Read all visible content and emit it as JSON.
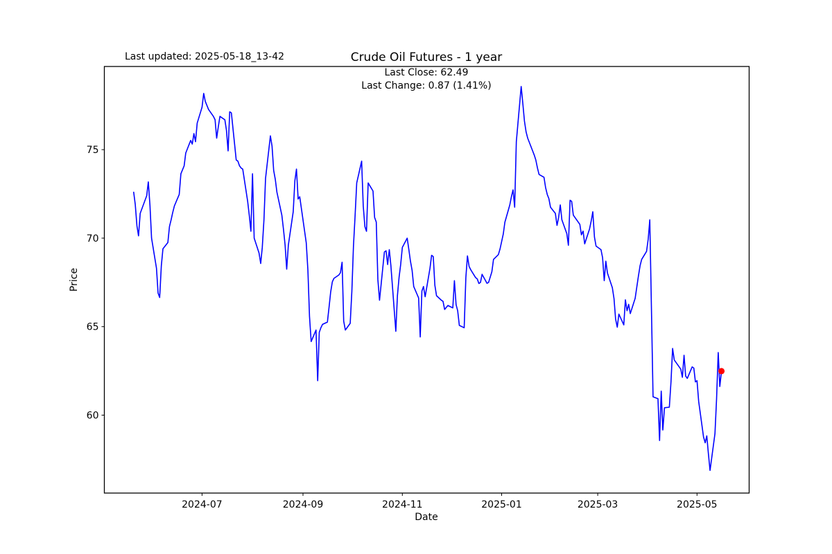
{
  "figure": {
    "last_updated": "Last updated: 2025-05-18_13-42"
  },
  "chart_data": {
    "type": "line",
    "title": "Crude Oil Futures - 1 year",
    "xlabel": "Date",
    "ylabel": "Price",
    "annotation": {
      "line1": "Last Close: 62.49",
      "line2": "Last Change: 0.87 (1.41%)"
    },
    "last_close": 62.49,
    "last_change": 0.87,
    "last_change_pct": 1.41,
    "line_color": "#0000ff",
    "marker_color": "#ff0000",
    "grid": false,
    "legend": "none",
    "x_ticks": [
      "2024-07",
      "2024-09",
      "2024-11",
      "2025-01",
      "2025-03",
      "2025-05"
    ],
    "y_ticks": [
      60,
      65,
      70,
      75
    ],
    "xlim": [
      "2024-05-02",
      "2025-06-02"
    ],
    "ylim": [
      55.6,
      79.7
    ],
    "series": [
      {
        "name": "Close",
        "points": [
          [
            "2024-05-20",
            72.6
          ],
          [
            "2024-05-21",
            71.9
          ],
          [
            "2024-05-22",
            70.7
          ],
          [
            "2024-05-23",
            70.13
          ],
          [
            "2024-05-24",
            71.4
          ],
          [
            "2024-05-28",
            72.4
          ],
          [
            "2024-05-29",
            73.18
          ],
          [
            "2024-05-30",
            71.85
          ],
          [
            "2024-05-31",
            70.0
          ],
          [
            "2024-06-03",
            68.3
          ],
          [
            "2024-06-04",
            66.9
          ],
          [
            "2024-06-05",
            66.65
          ],
          [
            "2024-06-06",
            68.45
          ],
          [
            "2024-06-07",
            69.4
          ],
          [
            "2024-06-10",
            69.75
          ],
          [
            "2024-06-11",
            70.65
          ],
          [
            "2024-06-12",
            71.04
          ],
          [
            "2024-06-13",
            71.45
          ],
          [
            "2024-06-14",
            71.82
          ],
          [
            "2024-06-17",
            72.47
          ],
          [
            "2024-06-18",
            73.64
          ],
          [
            "2024-06-20",
            74.09
          ],
          [
            "2024-06-21",
            74.81
          ],
          [
            "2024-06-24",
            75.52
          ],
          [
            "2024-06-25",
            75.32
          ],
          [
            "2024-06-26",
            75.91
          ],
          [
            "2024-06-27",
            75.45
          ],
          [
            "2024-06-28",
            76.5
          ],
          [
            "2024-07-01",
            77.4
          ],
          [
            "2024-07-02",
            78.18
          ],
          [
            "2024-07-03",
            77.73
          ],
          [
            "2024-07-05",
            77.27
          ],
          [
            "2024-07-08",
            76.88
          ],
          [
            "2024-07-09",
            76.69
          ],
          [
            "2024-07-10",
            75.65
          ],
          [
            "2024-07-11",
            76.3
          ],
          [
            "2024-07-12",
            76.88
          ],
          [
            "2024-07-15",
            76.69
          ],
          [
            "2024-07-16",
            76.1
          ],
          [
            "2024-07-17",
            74.93
          ],
          [
            "2024-07-18",
            77.14
          ],
          [
            "2024-07-19",
            77.08
          ],
          [
            "2024-07-22",
            74.42
          ],
          [
            "2024-07-23",
            74.35
          ],
          [
            "2024-07-24",
            74.09
          ],
          [
            "2024-07-25",
            73.96
          ],
          [
            "2024-07-26",
            73.9
          ],
          [
            "2024-07-29",
            72.08
          ],
          [
            "2024-07-30",
            71.3
          ],
          [
            "2024-07-31",
            70.39
          ],
          [
            "2024-08-01",
            73.64
          ],
          [
            "2024-08-02",
            70.0
          ],
          [
            "2024-08-05",
            69.16
          ],
          [
            "2024-08-06",
            68.57
          ],
          [
            "2024-08-07",
            69.48
          ],
          [
            "2024-08-08",
            71.04
          ],
          [
            "2024-08-09",
            73.38
          ],
          [
            "2024-08-12",
            75.78
          ],
          [
            "2024-08-13",
            75.19
          ],
          [
            "2024-08-14",
            73.83
          ],
          [
            "2024-08-15",
            73.31
          ],
          [
            "2024-08-16",
            72.6
          ],
          [
            "2024-08-19",
            71.3
          ],
          [
            "2024-08-20",
            70.52
          ],
          [
            "2024-08-21",
            69.61
          ],
          [
            "2024-08-22",
            68.25
          ],
          [
            "2024-08-23",
            69.61
          ],
          [
            "2024-08-26",
            71.49
          ],
          [
            "2024-08-27",
            73.25
          ],
          [
            "2024-08-28",
            73.9
          ],
          [
            "2024-08-29",
            72.21
          ],
          [
            "2024-08-30",
            72.34
          ],
          [
            "2024-09-03",
            69.74
          ],
          [
            "2024-09-04",
            68.18
          ],
          [
            "2024-09-05",
            65.58
          ],
          [
            "2024-09-06",
            64.16
          ],
          [
            "2024-09-09",
            64.81
          ],
          [
            "2024-09-10",
            61.95
          ],
          [
            "2024-09-11",
            64.68
          ],
          [
            "2024-09-12",
            64.94
          ],
          [
            "2024-09-13",
            65.13
          ],
          [
            "2024-09-16",
            65.26
          ],
          [
            "2024-09-17",
            66.1
          ],
          [
            "2024-09-18",
            66.95
          ],
          [
            "2024-09-19",
            67.53
          ],
          [
            "2024-09-20",
            67.73
          ],
          [
            "2024-09-23",
            67.92
          ],
          [
            "2024-09-24",
            68.05
          ],
          [
            "2024-09-25",
            68.64
          ],
          [
            "2024-09-26",
            65.32
          ],
          [
            "2024-09-27",
            64.81
          ],
          [
            "2024-09-30",
            65.19
          ],
          [
            "2024-10-01",
            67.01
          ],
          [
            "2024-10-02",
            69.55
          ],
          [
            "2024-10-03",
            71.3
          ],
          [
            "2024-10-04",
            73.12
          ],
          [
            "2024-10-07",
            74.35
          ],
          [
            "2024-10-08",
            71.82
          ],
          [
            "2024-10-09",
            70.65
          ],
          [
            "2024-10-10",
            70.39
          ],
          [
            "2024-10-11",
            73.12
          ],
          [
            "2024-10-14",
            72.66
          ],
          [
            "2024-10-15",
            71.17
          ],
          [
            "2024-10-16",
            70.91
          ],
          [
            "2024-10-17",
            67.66
          ],
          [
            "2024-10-18",
            66.49
          ],
          [
            "2024-10-21",
            69.22
          ],
          [
            "2024-10-22",
            69.29
          ],
          [
            "2024-10-23",
            68.51
          ],
          [
            "2024-10-24",
            69.35
          ],
          [
            "2024-10-25",
            68.44
          ],
          [
            "2024-10-28",
            64.74
          ],
          [
            "2024-10-29",
            66.75
          ],
          [
            "2024-10-30",
            67.79
          ],
          [
            "2024-10-31",
            68.51
          ],
          [
            "2024-11-01",
            69.48
          ],
          [
            "2024-11-04",
            70.0
          ],
          [
            "2024-11-05",
            69.35
          ],
          [
            "2024-11-06",
            68.7
          ],
          [
            "2024-11-07",
            68.18
          ],
          [
            "2024-11-08",
            67.27
          ],
          [
            "2024-11-11",
            66.62
          ],
          [
            "2024-11-12",
            64.42
          ],
          [
            "2024-11-13",
            67.01
          ],
          [
            "2024-11-14",
            67.27
          ],
          [
            "2024-11-15",
            66.69
          ],
          [
            "2024-11-18",
            68.31
          ],
          [
            "2024-11-19",
            69.03
          ],
          [
            "2024-11-20",
            68.96
          ],
          [
            "2024-11-21",
            67.34
          ],
          [
            "2024-11-22",
            66.75
          ],
          [
            "2024-11-25",
            66.49
          ],
          [
            "2024-11-26",
            66.43
          ],
          [
            "2024-11-27",
            65.97
          ],
          [
            "2024-11-29",
            66.2
          ],
          [
            "2024-12-02",
            66.06
          ],
          [
            "2024-12-03",
            67.6
          ],
          [
            "2024-12-04",
            66.25
          ],
          [
            "2024-12-05",
            65.9
          ],
          [
            "2024-12-06",
            65.07
          ],
          [
            "2024-12-09",
            64.94
          ],
          [
            "2024-12-10",
            67.77
          ],
          [
            "2024-12-11",
            69.0
          ],
          [
            "2024-12-12",
            68.4
          ],
          [
            "2024-12-13",
            68.22
          ],
          [
            "2024-12-16",
            67.77
          ],
          [
            "2024-12-17",
            67.7
          ],
          [
            "2024-12-18",
            67.44
          ],
          [
            "2024-12-19",
            67.5
          ],
          [
            "2024-12-20",
            67.96
          ],
          [
            "2024-12-23",
            67.45
          ],
          [
            "2024-12-24",
            67.5
          ],
          [
            "2024-12-26",
            68.1
          ],
          [
            "2024-12-27",
            68.8
          ],
          [
            "2024-12-30",
            69.07
          ],
          [
            "2024-12-31",
            69.39
          ],
          [
            "2025-01-02",
            70.24
          ],
          [
            "2025-01-03",
            70.9
          ],
          [
            "2025-01-06",
            71.88
          ],
          [
            "2025-01-07",
            72.34
          ],
          [
            "2025-01-08",
            72.73
          ],
          [
            "2025-01-09",
            71.75
          ],
          [
            "2025-01-10",
            75.45
          ],
          [
            "2025-01-13",
            78.57
          ],
          [
            "2025-01-14",
            77.6
          ],
          [
            "2025-01-15",
            76.62
          ],
          [
            "2025-01-16",
            76.0
          ],
          [
            "2025-01-17",
            75.65
          ],
          [
            "2025-01-21",
            74.7
          ],
          [
            "2025-01-22",
            74.42
          ],
          [
            "2025-01-23",
            73.96
          ],
          [
            "2025-01-24",
            73.6
          ],
          [
            "2025-01-27",
            73.44
          ],
          [
            "2025-01-28",
            72.86
          ],
          [
            "2025-01-29",
            72.47
          ],
          [
            "2025-01-30",
            72.24
          ],
          [
            "2025-01-31",
            71.75
          ],
          [
            "2025-02-03",
            71.4
          ],
          [
            "2025-02-04",
            70.72
          ],
          [
            "2025-02-05",
            71.17
          ],
          [
            "2025-02-06",
            71.88
          ],
          [
            "2025-02-07",
            71.04
          ],
          [
            "2025-02-10",
            70.26
          ],
          [
            "2025-02-11",
            69.6
          ],
          [
            "2025-02-12",
            72.14
          ],
          [
            "2025-02-13",
            72.08
          ],
          [
            "2025-02-14",
            71.3
          ],
          [
            "2025-02-18",
            70.78
          ],
          [
            "2025-02-19",
            70.19
          ],
          [
            "2025-02-20",
            70.4
          ],
          [
            "2025-02-21",
            69.68
          ],
          [
            "2025-02-24",
            70.52
          ],
          [
            "2025-02-25",
            70.97
          ],
          [
            "2025-02-26",
            71.49
          ],
          [
            "2025-02-27",
            70.06
          ],
          [
            "2025-02-28",
            69.55
          ],
          [
            "2025-03-03",
            69.35
          ],
          [
            "2025-03-04",
            68.9
          ],
          [
            "2025-03-05",
            67.6
          ],
          [
            "2025-03-06",
            68.7
          ],
          [
            "2025-03-07",
            68.02
          ],
          [
            "2025-03-10",
            67.2
          ],
          [
            "2025-03-11",
            66.58
          ],
          [
            "2025-03-12",
            65.42
          ],
          [
            "2025-03-13",
            64.97
          ],
          [
            "2025-03-14",
            65.71
          ],
          [
            "2025-03-17",
            65.1
          ],
          [
            "2025-03-18",
            66.52
          ],
          [
            "2025-03-19",
            65.9
          ],
          [
            "2025-03-20",
            66.26
          ],
          [
            "2025-03-21",
            65.74
          ],
          [
            "2025-03-24",
            66.6
          ],
          [
            "2025-03-25",
            67.25
          ],
          [
            "2025-03-26",
            67.86
          ],
          [
            "2025-03-27",
            68.45
          ],
          [
            "2025-03-28",
            68.8
          ],
          [
            "2025-03-31",
            69.25
          ],
          [
            "2025-04-01",
            69.94
          ],
          [
            "2025-04-02",
            71.04
          ],
          [
            "2025-04-03",
            65.97
          ],
          [
            "2025-04-04",
            61.04
          ],
          [
            "2025-04-07",
            60.93
          ],
          [
            "2025-04-08",
            58.57
          ],
          [
            "2025-04-09",
            61.36
          ],
          [
            "2025-04-10",
            59.16
          ],
          [
            "2025-04-11",
            60.42
          ],
          [
            "2025-04-14",
            60.45
          ],
          [
            "2025-04-15",
            61.9
          ],
          [
            "2025-04-16",
            63.77
          ],
          [
            "2025-04-17",
            63.12
          ],
          [
            "2025-04-21",
            62.6
          ],
          [
            "2025-04-22",
            62.14
          ],
          [
            "2025-04-23",
            63.38
          ],
          [
            "2025-04-24",
            62.21
          ],
          [
            "2025-04-25",
            62.08
          ],
          [
            "2025-04-28",
            62.73
          ],
          [
            "2025-04-29",
            62.66
          ],
          [
            "2025-04-30",
            61.88
          ],
          [
            "2025-05-01",
            61.95
          ],
          [
            "2025-05-02",
            60.78
          ],
          [
            "2025-05-05",
            58.77
          ],
          [
            "2025-05-06",
            58.44
          ],
          [
            "2025-05-07",
            58.83
          ],
          [
            "2025-05-08",
            57.79
          ],
          [
            "2025-05-09",
            56.88
          ],
          [
            "2025-05-12",
            58.96
          ],
          [
            "2025-05-13",
            60.91
          ],
          [
            "2025-05-14",
            63.54
          ],
          [
            "2025-05-15",
            61.62
          ],
          [
            "2025-05-16",
            62.49
          ]
        ]
      }
    ]
  }
}
